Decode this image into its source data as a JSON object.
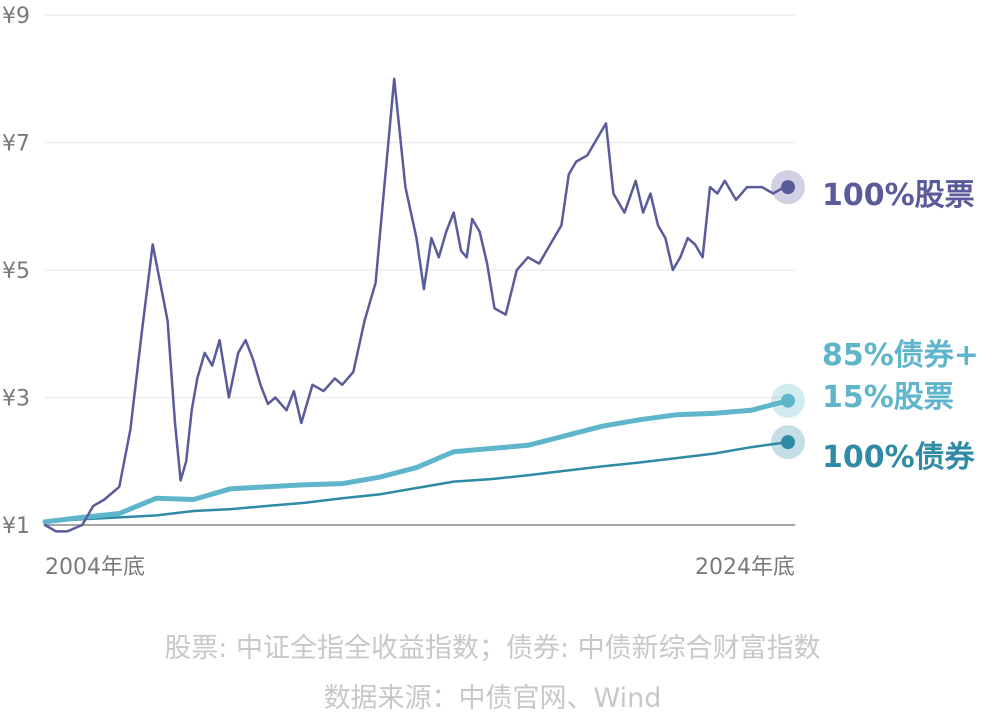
{
  "chart_data": {
    "type": "line",
    "title": "",
    "xlabel": "",
    "ylabel": "",
    "x_range": [
      2004.0,
      2024.0
    ],
    "x_tick_labels": [
      "2004年底",
      "2024年底"
    ],
    "ylim": [
      1,
      9
    ],
    "y_ticks": [
      1,
      3,
      5,
      7,
      9
    ],
    "y_tick_labels": [
      "¥1",
      "¥3",
      "¥5",
      "¥7",
      "¥9"
    ],
    "grid": true,
    "legend": "direct labels at line ends (right)",
    "series": [
      {
        "name": "100%股票",
        "label_lines": [
          "100%股票"
        ],
        "color": "#5a5b9a",
        "x": [
          2004.0,
          2004.3,
          2004.6,
          2005.0,
          2005.3,
          2005.6,
          2006.0,
          2006.3,
          2006.6,
          2006.9,
          2007.1,
          2007.3,
          2007.5,
          2007.65,
          2007.8,
          2007.95,
          2008.1,
          2008.3,
          2008.5,
          2008.7,
          2008.95,
          2009.2,
          2009.4,
          2009.6,
          2009.8,
          2010.0,
          2010.2,
          2010.5,
          2010.7,
          2010.9,
          2011.2,
          2011.5,
          2011.8,
          2012.0,
          2012.3,
          2012.6,
          2012.9,
          2013.1,
          2013.4,
          2013.7,
          2014.0,
          2014.2,
          2014.4,
          2014.6,
          2014.8,
          2015.0,
          2015.2,
          2015.35,
          2015.5,
          2015.7,
          2015.9,
          2016.1,
          2016.4,
          2016.7,
          2017.0,
          2017.3,
          2017.6,
          2017.9,
          2018.1,
          2018.3,
          2018.6,
          2018.9,
          2019.1,
          2019.3,
          2019.6,
          2019.9,
          2020.1,
          2020.3,
          2020.5,
          2020.7,
          2020.9,
          2021.1,
          2021.3,
          2021.5,
          2021.7,
          2021.9,
          2022.1,
          2022.3,
          2022.6,
          2022.9,
          2023.1,
          2023.3,
          2023.6,
          2023.9,
          2024.0
        ],
        "values": [
          1.0,
          0.9,
          0.9,
          1.0,
          1.3,
          1.4,
          1.6,
          2.5,
          4.0,
          5.4,
          4.8,
          4.2,
          2.6,
          1.7,
          2.0,
          2.8,
          3.3,
          3.7,
          3.5,
          3.9,
          3.0,
          3.7,
          3.9,
          3.6,
          3.2,
          2.9,
          3.0,
          2.8,
          3.1,
          2.6,
          3.2,
          3.1,
          3.3,
          3.2,
          3.4,
          4.2,
          4.8,
          6.1,
          8.0,
          6.3,
          5.5,
          4.7,
          5.5,
          5.2,
          5.6,
          5.9,
          5.3,
          5.2,
          5.8,
          5.6,
          5.1,
          4.4,
          4.3,
          5.0,
          5.2,
          5.1,
          5.4,
          5.7,
          6.5,
          6.7,
          6.8,
          7.1,
          7.3,
          6.2,
          5.9,
          6.4,
          5.9,
          6.2,
          5.7,
          5.5,
          5.0,
          5.2,
          5.5,
          5.4,
          5.2,
          6.3,
          6.2,
          6.4,
          6.1,
          6.3,
          6.3,
          6.3,
          6.2,
          6.3,
          6.3
        ]
      },
      {
        "name": "85%债券+15%股票",
        "label_lines": [
          "85%债券+",
          "15%股票"
        ],
        "color": "#5fb6cc",
        "x": [
          2004.0,
          2005.0,
          2006.0,
          2007.0,
          2008.0,
          2009.0,
          2010.0,
          2011.0,
          2012.0,
          2013.0,
          2014.0,
          2015.0,
          2016.0,
          2017.0,
          2018.0,
          2019.0,
          2020.0,
          2021.0,
          2022.0,
          2023.0,
          2024.0
        ],
        "values": [
          1.05,
          1.12,
          1.18,
          1.42,
          1.4,
          1.57,
          1.6,
          1.63,
          1.65,
          1.75,
          1.9,
          2.15,
          2.2,
          2.25,
          2.4,
          2.55,
          2.65,
          2.73,
          2.75,
          2.8,
          2.95
        ]
      },
      {
        "name": "100%债券",
        "label_lines": [
          "100%债券"
        ],
        "color": "#2f8aa4",
        "x": [
          2004.0,
          2005.0,
          2006.0,
          2007.0,
          2008.0,
          2009.0,
          2010.0,
          2011.0,
          2012.0,
          2013.0,
          2014.0,
          2015.0,
          2016.0,
          2017.0,
          2018.0,
          2019.0,
          2020.0,
          2021.0,
          2022.0,
          2023.0,
          2024.0
        ],
        "values": [
          1.05,
          1.09,
          1.12,
          1.15,
          1.22,
          1.25,
          1.3,
          1.35,
          1.42,
          1.48,
          1.58,
          1.68,
          1.72,
          1.78,
          1.85,
          1.92,
          1.98,
          2.05,
          2.12,
          2.22,
          2.3
        ]
      }
    ]
  },
  "notes": {
    "line1": "股票: 中证全指全收益指数；债券: 中债新综合财富指数",
    "line2": "数据来源：中债官网、Wind"
  }
}
